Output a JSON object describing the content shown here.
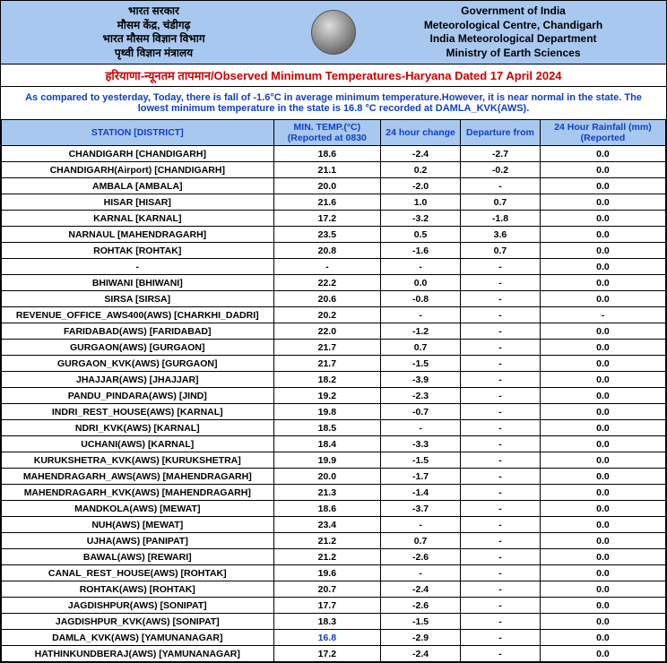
{
  "header": {
    "left_lines": [
      "भारत सरकार",
      "मौसम केंद्र, चंडीगढ़",
      "भारत मौसम विज्ञान विभाग",
      "पृथ्वी विज्ञान मंत्रालय"
    ],
    "right_lines": [
      "Government of India",
      "Meteorological Centre, Chandigarh",
      "India Meteorological Department",
      "Ministry of Earth Sciences"
    ]
  },
  "title": "हरियाणा-न्यूनतम तापमान/Observed Minimum Temperatures-Haryana Dated 17 April 2024",
  "summary": "As compared to yesterday, Today, there is fall of -1.6°C in average minimum temperature.However, it is near normal in the state. The lowest minimum temperature in the state is 16.8 °C recorded at DAMLA_KVK(AWS).",
  "columns": [
    "STATION [DISTRICT]",
    "MIN. TEMP.(°C) (Reported at 0830",
    "24 hour change",
    "Departure from",
    "24 Hour Rainfall (mm) (Reported"
  ],
  "col_widths": [
    "290px",
    "110px",
    "80px",
    "80px",
    "130px"
  ],
  "lowest_row_index": 30,
  "rows": [
    [
      "CHANDIGARH  [CHANDIGARH]",
      "18.6",
      "-2.4",
      "-2.7",
      "0.0"
    ],
    [
      "CHANDIGARH(Airport)  [CHANDIGARH]",
      "21.1",
      "0.2",
      "-0.2",
      "0.0"
    ],
    [
      "AMBALA  [AMBALA]",
      "20.0",
      "-2.0",
      "-",
      "0.0"
    ],
    [
      "HISAR  [HISAR]",
      "21.6",
      "1.0",
      "0.7",
      "0.0"
    ],
    [
      "KARNAL  [KARNAL]",
      "17.2",
      "-3.2",
      "-1.8",
      "0.0"
    ],
    [
      "NARNAUL  [MAHENDRAGARH]",
      "23.5",
      "0.5",
      "3.6",
      "0.0"
    ],
    [
      "ROHTAK  [ROHTAK]",
      "20.8",
      "-1.6",
      "0.7",
      "0.0"
    ],
    [
      "-",
      "-",
      "-",
      "-",
      "0.0"
    ],
    [
      "BHIWANI  [BHIWANI]",
      "22.2",
      "0.0",
      "-",
      "0.0"
    ],
    [
      "SIRSA  [SIRSA]",
      "20.6",
      "-0.8",
      "-",
      "0.0"
    ],
    [
      "REVENUE_OFFICE_AWS400(AWS)  [CHARKHI_DADRI]",
      "20.2",
      "-",
      "-",
      "-"
    ],
    [
      "FARIDABAD(AWS)  [FARIDABAD]",
      "22.0",
      "-1.2",
      "-",
      "0.0"
    ],
    [
      "GURGAON(AWS)  [GURGAON]",
      "21.7",
      "0.7",
      "-",
      "0.0"
    ],
    [
      "GURGAON_KVK(AWS)  [GURGAON]",
      "21.7",
      "-1.5",
      "-",
      "0.0"
    ],
    [
      "JHAJJAR(AWS)  [JHAJJAR]",
      "18.2",
      "-3.9",
      "-",
      "0.0"
    ],
    [
      "PANDU_PINDARA(AWS)  [JIND]",
      "19.2",
      "-2.3",
      "-",
      "0.0"
    ],
    [
      "INDRI_REST_HOUSE(AWS)  [KARNAL]",
      "19.8",
      "-0.7",
      "-",
      "0.0"
    ],
    [
      "NDRI_KVK(AWS)  [KARNAL]",
      "18.5",
      "-",
      "-",
      "0.0"
    ],
    [
      "UCHANI(AWS)  [KARNAL]",
      "18.4",
      "-3.3",
      "-",
      "0.0"
    ],
    [
      "KURUKSHETRA_KVK(AWS)  [KURUKSHETRA]",
      "19.9",
      "-1.5",
      "-",
      "0.0"
    ],
    [
      "MAHENDRAGARH_AWS(AWS)  [MAHENDRAGARH]",
      "20.0",
      "-1.7",
      "-",
      "0.0"
    ],
    [
      "MAHENDRAGARH_KVK(AWS)  [MAHENDRAGARH]",
      "21.3",
      "-1.4",
      "-",
      "0.0"
    ],
    [
      "MANDKOLA(AWS)  [MEWAT]",
      "18.6",
      "-3.7",
      "-",
      "0.0"
    ],
    [
      "NUH(AWS)  [MEWAT]",
      "23.4",
      "-",
      "-",
      "0.0"
    ],
    [
      "UJHA(AWS)  [PANIPAT]",
      "21.2",
      "0.7",
      "-",
      "0.0"
    ],
    [
      "BAWAL(AWS)  [REWARI]",
      "21.2",
      "-2.6",
      "-",
      "0.0"
    ],
    [
      "CANAL_REST_HOUSE(AWS)  [ROHTAK]",
      "19.6",
      "-",
      "-",
      "0.0"
    ],
    [
      "ROHTAK(AWS)  [ROHTAK]",
      "20.7",
      "-2.4",
      "-",
      "0.0"
    ],
    [
      "JAGDISHPUR(AWS)  [SONIPAT]",
      "17.7",
      "-2.6",
      "-",
      "0.0"
    ],
    [
      "JAGDISHPUR_KVK(AWS)  [SONIPAT]",
      "18.3",
      "-1.5",
      "-",
      "0.0"
    ],
    [
      "DAMLA_KVK(AWS)  [YAMUNANAGAR]",
      "16.8",
      "-2.9",
      "-",
      "0.0"
    ],
    [
      "HATHINKUNDBERAJ(AWS)  [YAMUNANAGAR]",
      "17.2",
      "-2.4",
      "-",
      "0.0"
    ]
  ],
  "colors": {
    "header_bg": "#a8c8f0",
    "title_color": "#d00000",
    "summary_color": "#1040c0",
    "th_text": "#1040c0",
    "border": "#000000",
    "lowest_color": "#1040c0"
  }
}
